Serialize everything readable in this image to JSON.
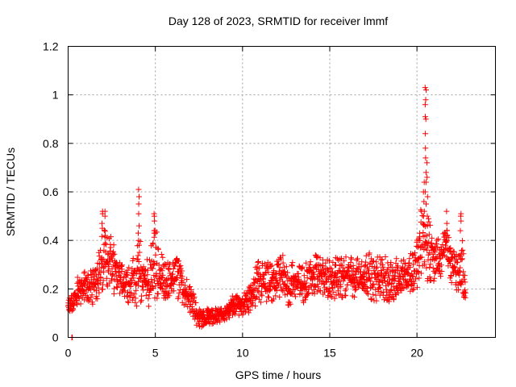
{
  "chart_data": {
    "type": "scatter",
    "title": "Day 128 of 2023, SRMTID for receiver lmmf",
    "xlabel": "GPS time / hours",
    "ylabel": "SRMTID / TECUs",
    "xlim": [
      0,
      24.5
    ],
    "ylim": [
      0,
      1.2
    ],
    "xticks": [
      0,
      5,
      10,
      15,
      20
    ],
    "xtick_labels": [
      "0",
      "5",
      "10",
      "15",
      "20"
    ],
    "yticks": [
      0,
      0.2,
      0.4,
      0.6,
      0.8,
      1.0,
      1.2
    ],
    "ytick_labels": [
      "0",
      "0.2",
      "0.4",
      "0.6",
      "0.8",
      "1",
      "1.2"
    ],
    "grid": true,
    "marker": "+",
    "color": "#ff0000",
    "series_name": "SRMTID",
    "envelope": {
      "x": [
        0,
        0.3,
        0.6,
        1.0,
        1.5,
        1.9,
        2.1,
        2.4,
        2.8,
        3.3,
        3.8,
        4.1,
        4.4,
        4.8,
        5.0,
        5.3,
        5.8,
        6.2,
        6.6,
        7.0,
        7.4,
        7.7,
        8.0,
        8.5,
        9.0,
        9.5,
        10.0,
        10.5,
        10.9,
        11.3,
        11.8,
        12.2,
        12.8,
        13.3,
        13.8,
        14.2,
        14.6,
        15.0,
        15.5,
        16.0,
        16.5,
        17.0,
        17.5,
        18.0,
        18.5,
        19.0,
        19.5,
        19.8,
        20.1,
        20.3,
        20.5,
        20.7,
        21.0,
        21.4,
        21.7,
        22.0,
        22.3,
        22.6,
        22.8
      ],
      "low": [
        0.1,
        0.1,
        0.12,
        0.12,
        0.13,
        0.16,
        0.18,
        0.2,
        0.16,
        0.14,
        0.13,
        0.12,
        0.12,
        0.12,
        0.14,
        0.15,
        0.16,
        0.16,
        0.14,
        0.08,
        0.04,
        0.03,
        0.05,
        0.06,
        0.07,
        0.09,
        0.09,
        0.1,
        0.13,
        0.14,
        0.15,
        0.14,
        0.13,
        0.14,
        0.15,
        0.16,
        0.15,
        0.15,
        0.15,
        0.16,
        0.16,
        0.17,
        0.15,
        0.12,
        0.14,
        0.16,
        0.17,
        0.18,
        0.2,
        0.22,
        0.24,
        0.22,
        0.22,
        0.25,
        0.28,
        0.22,
        0.16,
        0.14,
        0.15
      ],
      "high": [
        0.16,
        0.2,
        0.26,
        0.28,
        0.3,
        0.42,
        0.5,
        0.44,
        0.34,
        0.3,
        0.34,
        0.42,
        0.33,
        0.4,
        0.48,
        0.36,
        0.3,
        0.38,
        0.28,
        0.22,
        0.14,
        0.12,
        0.12,
        0.12,
        0.13,
        0.18,
        0.18,
        0.22,
        0.34,
        0.32,
        0.3,
        0.34,
        0.33,
        0.3,
        0.31,
        0.38,
        0.34,
        0.32,
        0.34,
        0.36,
        0.33,
        0.36,
        0.34,
        0.34,
        0.32,
        0.34,
        0.35,
        0.38,
        0.45,
        0.6,
        0.55,
        0.5,
        0.4,
        0.42,
        0.47,
        0.4,
        0.36,
        0.48,
        0.2
      ]
    },
    "spikes": [
      {
        "x": 0.22,
        "values": [
          0.0,
          0.0
        ]
      },
      {
        "x": 1.95,
        "values": [
          0.52,
          0.51,
          0.47,
          0.45
        ]
      },
      {
        "x": 2.1,
        "values": [
          0.52,
          0.5,
          0.42
        ]
      },
      {
        "x": 4.05,
        "values": [
          0.61,
          0.58,
          0.55,
          0.51,
          0.46,
          0.43,
          0.4
        ]
      },
      {
        "x": 4.95,
        "values": [
          0.51,
          0.5,
          0.48,
          0.44,
          0.43
        ]
      },
      {
        "x": 20.4,
        "values": [
          0.64,
          0.6,
          0.56,
          0.52
        ]
      },
      {
        "x": 20.5,
        "values": [
          1.03,
          1.02,
          0.98,
          0.96,
          0.91,
          0.9,
          0.84,
          0.78,
          0.74,
          0.68,
          0.64,
          0.6,
          0.55
        ]
      },
      {
        "x": 20.6,
        "values": [
          0.72,
          0.66,
          0.58,
          0.5,
          0.46
        ]
      },
      {
        "x": 21.7,
        "values": [
          0.52,
          0.47,
          0.44
        ]
      },
      {
        "x": 22.5,
        "values": [
          0.51,
          0.5,
          0.48,
          0.44
        ]
      }
    ]
  }
}
